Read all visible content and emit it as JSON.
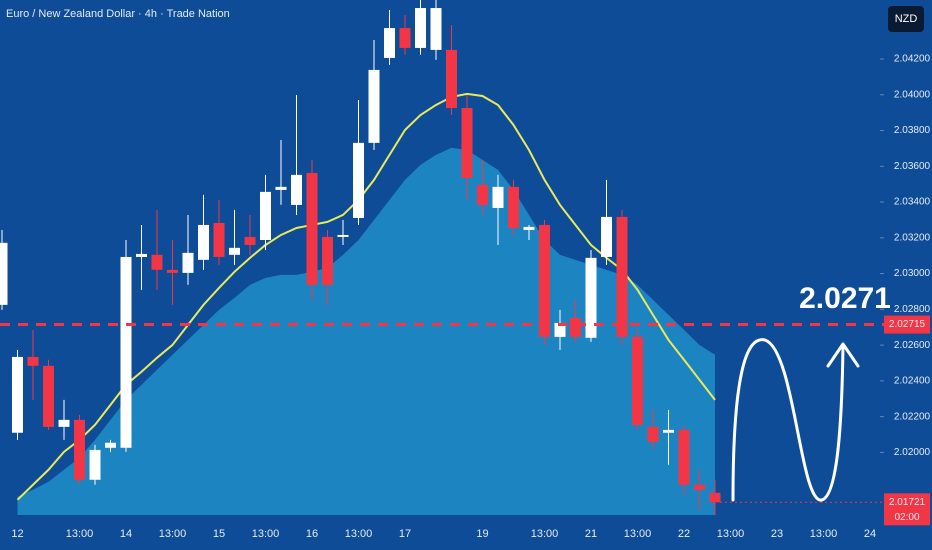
{
  "chart_data": {
    "type": "candlestick",
    "title": "Euro / New Zealand Dollar · 4h · Trade Nation",
    "currency_button": "NZD",
    "annotation": "2.0271",
    "categories": [
      null,
      "12",
      null,
      null,
      null,
      "13:00",
      null,
      null,
      "14",
      null,
      null,
      "13:00",
      null,
      null,
      "15",
      null,
      null,
      "13:00",
      null,
      null,
      "16",
      null,
      null,
      "13:00",
      null,
      null,
      "17",
      null,
      null,
      null,
      null,
      "19",
      null,
      null,
      null,
      "13:00",
      null,
      null,
      "21",
      null,
      null,
      "13:00",
      null,
      null,
      "22",
      null,
      null,
      "13:00",
      null,
      null,
      "23",
      null,
      null,
      "13:00",
      null,
      null,
      "24"
    ],
    "ylim": [
      2.0165,
      2.0453
    ],
    "yticks": [
      {
        "value": 2.042,
        "label": "2.04200"
      },
      {
        "value": 2.04,
        "label": "2.04000"
      },
      {
        "value": 2.038,
        "label": "2.03800"
      },
      {
        "value": 2.036,
        "label": "2.03600"
      },
      {
        "value": 2.034,
        "label": "2.03400"
      },
      {
        "value": 2.032,
        "label": "2.03200"
      },
      {
        "value": 2.03,
        "label": "2.03000"
      },
      {
        "value": 2.028,
        "label": "2.02800"
      },
      {
        "value": 2.026,
        "label": "2.02600"
      },
      {
        "value": 2.024,
        "label": "2.02400"
      },
      {
        "value": 2.022,
        "label": "2.02200"
      },
      {
        "value": 2.02,
        "label": "2.02000"
      }
    ],
    "price_line": {
      "value": 2.02715,
      "color": "#f23645"
    },
    "last_price": {
      "value": 2.01721,
      "time": "02:00",
      "color": "#f23645"
    },
    "series": [
      {
        "type": "area",
        "color": "#1e8fc8",
        "values": [
          null,
          2.01752,
          2.01791,
          2.01836,
          2.01903,
          2.0197,
          2.0207,
          2.02182,
          2.02294,
          2.02378,
          2.02462,
          2.02546,
          2.02629,
          2.02713,
          2.02797,
          2.02864,
          2.02937,
          2.02976,
          2.02993,
          2.02993,
          2.0301,
          2.03032,
          2.03105,
          2.03188,
          2.033,
          2.03412,
          2.03524,
          2.03608,
          2.03664,
          2.03703,
          2.03691,
          2.03636,
          2.0358,
          2.03468,
          2.03328,
          2.03188,
          2.03105,
          2.03077,
          2.03049,
          2.03021,
          2.02993,
          2.02937,
          2.02853,
          2.02769,
          2.02685,
          2.02601,
          2.02546,
          null,
          null,
          null,
          null,
          null,
          null,
          null,
          null,
          null,
          null
        ]
      },
      {
        "type": "line",
        "color": "#e8ea5c",
        "values": [
          null,
          2.01735,
          2.01819,
          2.01903,
          2.02003,
          2.0207,
          2.02154,
          2.02266,
          2.02378,
          2.02451,
          2.02529,
          2.02601,
          2.02713,
          2.02825,
          2.0292,
          2.0301,
          2.03088,
          2.0316,
          2.03216,
          2.03255,
          2.03272,
          2.03289,
          2.03328,
          2.03412,
          2.03524,
          2.03664,
          2.03803,
          2.03887,
          2.03943,
          2.03988,
          2.04005,
          2.03993,
          2.03943,
          2.03831,
          2.03691,
          2.03524,
          2.03384,
          2.03272,
          2.0316,
          2.03088,
          2.03021,
          2.02909,
          2.02769,
          2.02629,
          2.02518,
          2.02406,
          2.02294,
          null,
          null,
          null,
          null,
          null,
          null,
          null,
          null,
          null,
          null
        ]
      },
      {
        "type": "candlestick",
        "up_color": "#ffffff",
        "down_color": "#f23645",
        "open": [
          2.02825,
          2.0211,
          2.02534,
          2.02484,
          2.02143,
          2.02182,
          2.01847,
          2.02026,
          2.02026,
          2.03093,
          2.03105,
          2.03021,
          2.03004,
          2.03077,
          2.03283,
          2.03105,
          2.03205,
          2.03188,
          2.03468,
          2.03384,
          2.03563,
          2.03205,
          2.03205,
          2.03311,
          2.03731,
          2.04206,
          2.04373,
          2.04262,
          2.04251,
          2.04251,
          2.03926,
          2.03496,
          2.03367,
          2.03485,
          2.03244,
          2.03272,
          2.02646,
          2.02752,
          2.02641,
          2.03093,
          2.03317,
          2.02646,
          2.02143,
          2.0211,
          2.02126,
          2.01819,
          2.01774,
          null,
          null,
          null,
          null,
          null,
          null,
          null,
          null,
          null,
          null
        ],
        "high": [
          2.03244,
          2.02573,
          2.02685,
          2.02518,
          2.02294,
          2.0221,
          2.02042,
          2.0207,
          2.03188,
          2.03272,
          2.03356,
          2.03188,
          2.03328,
          2.0344,
          2.03412,
          2.03356,
          2.03328,
          2.03552,
          2.03747,
          2.03999,
          2.03636,
          2.03244,
          2.033,
          2.03971,
          2.04306,
          2.04474,
          2.04446,
          2.0453,
          2.0453,
          2.0439,
          2.03999,
          2.03636,
          2.03552,
          2.03524,
          2.03272,
          2.033,
          2.02797,
          2.02853,
          2.03132,
          2.03524,
          2.03356,
          2.02685,
          2.02238,
          2.02238,
          2.02154,
          2.01903,
          2.01847,
          null,
          null,
          null,
          null,
          null,
          null,
          null,
          null,
          null,
          null
        ],
        "low": [
          2.02797,
          2.0207,
          2.02294,
          2.02126,
          2.0207,
          2.01819,
          2.01819,
          2.02003,
          2.02003,
          2.02909,
          2.02909,
          2.02825,
          2.02937,
          2.03021,
          2.03049,
          2.03049,
          2.03105,
          2.03132,
          2.03384,
          2.03328,
          2.02853,
          2.02825,
          2.0316,
          2.03272,
          2.03691,
          2.04167,
          2.04223,
          2.04223,
          2.04195,
          2.03887,
          2.03412,
          2.03328,
          2.0316,
          2.03216,
          2.03188,
          2.02601,
          2.02573,
          2.02618,
          2.02618,
          2.03049,
          2.02601,
          2.02126,
          2.02014,
          2.01931,
          2.01763,
          2.01679,
          2.01651,
          null,
          null,
          null,
          null,
          null,
          null,
          null,
          null,
          null,
          null
        ],
        "close": [
          2.03172,
          2.02534,
          2.02484,
          2.02143,
          2.02182,
          2.01847,
          2.02014,
          2.02054,
          2.03093,
          2.0311,
          2.03021,
          2.03004,
          2.03116,
          2.03272,
          2.03093,
          2.03144,
          2.0316,
          2.03457,
          2.03485,
          2.03552,
          2.02937,
          2.02937,
          2.03216,
          2.03731,
          2.04139,
          2.04373,
          2.04262,
          2.04485,
          2.04485,
          2.03926,
          2.03535,
          2.03384,
          2.03485,
          2.03255,
          2.03261,
          2.02646,
          2.02724,
          2.02646,
          2.03088,
          2.03317,
          2.02646,
          2.02154,
          2.02059,
          2.02126,
          2.01819,
          2.01791,
          2.01721,
          null,
          null,
          null,
          null,
          null,
          null,
          null,
          null,
          null,
          null
        ]
      }
    ]
  }
}
